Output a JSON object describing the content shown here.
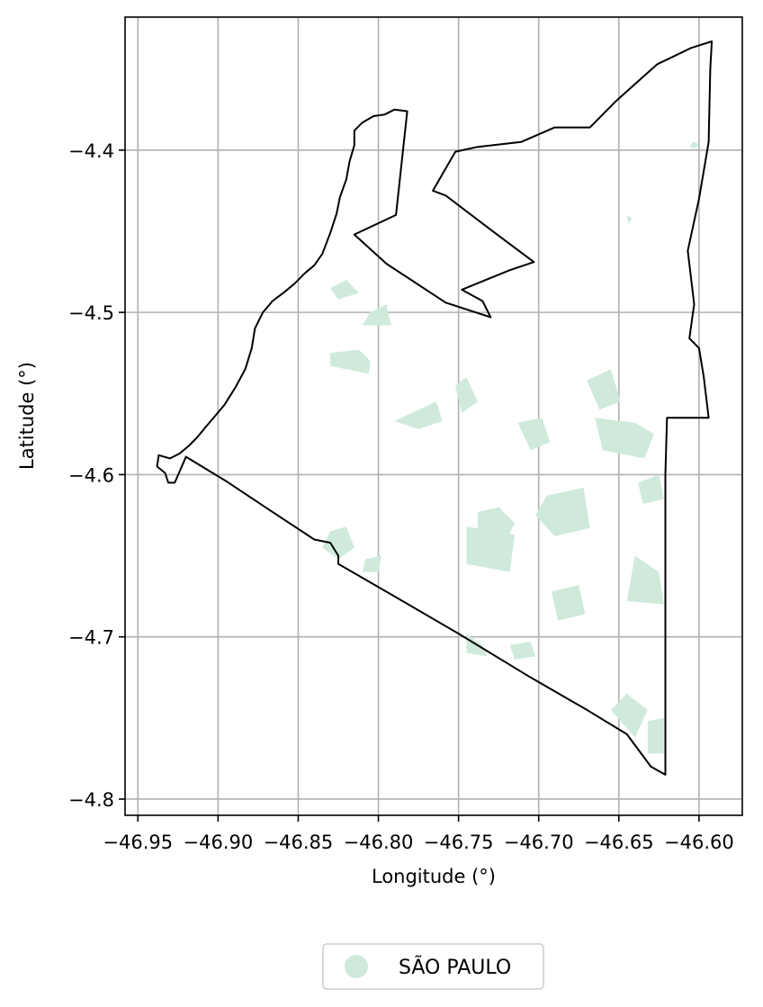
{
  "chart_data": {
    "type": "map",
    "title": "",
    "xlabel": "Longitude (°)",
    "ylabel": "Latitude (°)",
    "xlim": [
      -46.958,
      -46.573
    ],
    "ylim": [
      -4.81,
      -4.318
    ],
    "grid": true,
    "x_ticks": [
      -46.95,
      -46.9,
      -46.85,
      -46.8,
      -46.75,
      -46.7,
      -46.65,
      -46.6
    ],
    "y_ticks": [
      -4.4,
      -4.5,
      -4.6,
      -4.7,
      -4.8
    ],
    "x_tick_labels": [
      "−46.95",
      "−46.90",
      "−46.85",
      "−46.80",
      "−46.75",
      "−46.70",
      "−46.65",
      "−46.60"
    ],
    "y_tick_labels": [
      "−4.4",
      "−4.5",
      "−4.6",
      "−4.7",
      "−4.8"
    ],
    "legend": {
      "position": "bottom-center",
      "entries": [
        {
          "label": "SÃO PAULO",
          "color": "#cfeadb",
          "marker": "circle"
        }
      ]
    },
    "boundary": {
      "color": "#000000",
      "coordinates": [
        [
          -46.782,
          -4.376
        ],
        [
          -46.79,
          -4.375
        ],
        [
          -46.796,
          -4.378
        ],
        [
          -46.803,
          -4.379
        ],
        [
          -46.81,
          -4.383
        ],
        [
          -46.815,
          -4.388
        ],
        [
          -46.815,
          -4.397
        ],
        [
          -46.818,
          -4.407
        ],
        [
          -46.82,
          -4.418
        ],
        [
          -46.824,
          -4.429
        ],
        [
          -46.826,
          -4.439
        ],
        [
          -46.83,
          -4.451
        ],
        [
          -46.835,
          -4.464
        ],
        [
          -46.84,
          -4.471
        ],
        [
          -46.846,
          -4.476
        ],
        [
          -46.852,
          -4.482
        ],
        [
          -46.858,
          -4.487
        ],
        [
          -46.866,
          -4.493
        ],
        [
          -46.872,
          -4.5
        ],
        [
          -46.877,
          -4.51
        ],
        [
          -46.879,
          -4.522
        ],
        [
          -46.883,
          -4.535
        ],
        [
          -46.889,
          -4.546
        ],
        [
          -46.896,
          -4.557
        ],
        [
          -46.902,
          -4.564
        ],
        [
          -46.908,
          -4.571
        ],
        [
          -46.913,
          -4.577
        ],
        [
          -46.918,
          -4.582
        ],
        [
          -46.924,
          -4.587
        ],
        [
          -46.93,
          -4.59
        ],
        [
          -46.937,
          -4.588
        ],
        [
          -46.938,
          -4.595
        ],
        [
          -46.933,
          -4.599
        ],
        [
          -46.931,
          -4.605
        ],
        [
          -46.927,
          -4.605
        ],
        [
          -46.92,
          -4.589
        ],
        [
          -46.895,
          -4.604
        ],
        [
          -46.866,
          -4.623
        ],
        [
          -46.84,
          -4.64
        ],
        [
          -46.83,
          -4.642
        ],
        [
          -46.825,
          -4.65
        ],
        [
          -46.825,
          -4.655
        ],
        [
          -46.79,
          -4.675
        ],
        [
          -46.75,
          -4.698
        ],
        [
          -46.705,
          -4.725
        ],
        [
          -46.67,
          -4.745
        ],
        [
          -46.645,
          -4.76
        ],
        [
          -46.63,
          -4.78
        ],
        [
          -46.621,
          -4.785
        ],
        [
          -46.621,
          -4.745
        ],
        [
          -46.621,
          -4.69
        ],
        [
          -46.621,
          -4.645
        ],
        [
          -46.621,
          -4.6
        ],
        [
          -46.62,
          -4.565
        ],
        [
          -46.594,
          -4.565
        ],
        [
          -46.597,
          -4.54
        ],
        [
          -46.6,
          -4.522
        ],
        [
          -46.606,
          -4.516
        ],
        [
          -46.603,
          -4.495
        ],
        [
          -46.607,
          -4.462
        ],
        [
          -46.6,
          -4.43
        ],
        [
          -46.594,
          -4.395
        ],
        [
          -46.593,
          -4.35
        ],
        [
          -46.592,
          -4.333
        ],
        [
          -46.605,
          -4.337
        ],
        [
          -46.626,
          -4.347
        ],
        [
          -46.643,
          -4.362
        ],
        [
          -46.652,
          -4.37
        ],
        [
          -46.668,
          -4.386
        ],
        [
          -46.69,
          -4.386
        ],
        [
          -46.711,
          -4.395
        ],
        [
          -46.738,
          -4.398
        ],
        [
          -46.752,
          -4.401
        ],
        [
          -46.766,
          -4.425
        ],
        [
          -46.758,
          -4.428
        ],
        [
          -46.726,
          -4.452
        ],
        [
          -46.703,
          -4.469
        ],
        [
          -46.718,
          -4.474
        ],
        [
          -46.748,
          -4.486
        ],
        [
          -46.735,
          -4.493
        ],
        [
          -46.73,
          -4.503
        ],
        [
          -46.758,
          -4.494
        ],
        [
          -46.795,
          -4.47
        ],
        [
          -46.815,
          -4.452
        ],
        [
          -46.789,
          -4.44
        ],
        [
          -46.782,
          -4.376
        ]
      ]
    },
    "urban_areas": {
      "color": "#cfeadb",
      "polygons": [
        [
          [
            -46.83,
            -4.485
          ],
          [
            -46.82,
            -4.48
          ],
          [
            -46.812,
            -4.488
          ],
          [
            -46.825,
            -4.492
          ]
        ],
        [
          [
            -46.805,
            -4.5
          ],
          [
            -46.795,
            -4.495
          ],
          [
            -46.792,
            -4.508
          ],
          [
            -46.81,
            -4.508
          ]
        ],
        [
          [
            -46.83,
            -4.525
          ],
          [
            -46.812,
            -4.523
          ],
          [
            -46.805,
            -4.53
          ],
          [
            -46.806,
            -4.538
          ],
          [
            -46.83,
            -4.533
          ]
        ],
        [
          [
            -46.775,
            -4.56
          ],
          [
            -46.764,
            -4.555
          ],
          [
            -46.76,
            -4.567
          ],
          [
            -46.775,
            -4.572
          ],
          [
            -46.79,
            -4.567
          ]
        ],
        [
          [
            -46.752,
            -4.545
          ],
          [
            -46.745,
            -4.54
          ],
          [
            -46.738,
            -4.555
          ],
          [
            -46.748,
            -4.562
          ]
        ],
        [
          [
            -46.713,
            -4.568
          ],
          [
            -46.698,
            -4.565
          ],
          [
            -46.693,
            -4.58
          ],
          [
            -46.705,
            -4.585
          ]
        ],
        [
          [
            -46.67,
            -4.542
          ],
          [
            -46.655,
            -4.535
          ],
          [
            -46.649,
            -4.555
          ],
          [
            -46.662,
            -4.56
          ]
        ],
        [
          [
            -46.665,
            -4.565
          ],
          [
            -46.64,
            -4.568
          ],
          [
            -46.628,
            -4.575
          ],
          [
            -46.634,
            -4.59
          ],
          [
            -46.66,
            -4.585
          ]
        ],
        [
          [
            -46.638,
            -4.605
          ],
          [
            -46.625,
            -4.6
          ],
          [
            -46.622,
            -4.615
          ],
          [
            -46.635,
            -4.618
          ]
        ],
        [
          [
            -46.738,
            -4.623
          ],
          [
            -46.725,
            -4.62
          ],
          [
            -46.715,
            -4.63
          ],
          [
            -46.72,
            -4.64
          ],
          [
            -46.738,
            -4.636
          ]
        ],
        [
          [
            -46.695,
            -4.613
          ],
          [
            -46.672,
            -4.608
          ],
          [
            -46.668,
            -4.633
          ],
          [
            -46.69,
            -4.638
          ],
          [
            -46.702,
            -4.625
          ]
        ],
        [
          [
            -46.745,
            -4.632
          ],
          [
            -46.715,
            -4.637
          ],
          [
            -46.718,
            -4.66
          ],
          [
            -46.745,
            -4.655
          ]
        ],
        [
          [
            -46.64,
            -4.65
          ],
          [
            -46.625,
            -4.66
          ],
          [
            -46.622,
            -4.68
          ],
          [
            -46.645,
            -4.678
          ]
        ],
        [
          [
            -46.692,
            -4.672
          ],
          [
            -46.675,
            -4.668
          ],
          [
            -46.671,
            -4.686
          ],
          [
            -46.688,
            -4.69
          ]
        ],
        [
          [
            -46.745,
            -4.698
          ],
          [
            -46.735,
            -4.705
          ],
          [
            -46.732,
            -4.712
          ],
          [
            -46.745,
            -4.71
          ]
        ],
        [
          [
            -46.718,
            -4.705
          ],
          [
            -46.705,
            -4.703
          ],
          [
            -46.702,
            -4.712
          ],
          [
            -46.715,
            -4.714
          ]
        ],
        [
          [
            -46.655,
            -4.745
          ],
          [
            -46.645,
            -4.735
          ],
          [
            -46.632,
            -4.745
          ],
          [
            -46.64,
            -4.762
          ]
        ],
        [
          [
            -46.632,
            -4.752
          ],
          [
            -46.622,
            -4.75
          ],
          [
            -46.622,
            -4.772
          ],
          [
            -46.632,
            -4.772
          ]
        ],
        [
          [
            -46.83,
            -4.635
          ],
          [
            -46.82,
            -4.632
          ],
          [
            -46.815,
            -4.645
          ],
          [
            -46.825,
            -4.652
          ],
          [
            -46.835,
            -4.645
          ]
        ],
        [
          [
            -46.808,
            -4.652
          ],
          [
            -46.798,
            -4.65
          ],
          [
            -46.8,
            -4.66
          ],
          [
            -46.81,
            -4.66
          ]
        ],
        [
          [
            -46.604,
            -4.395
          ],
          [
            -46.6,
            -4.396
          ],
          [
            -46.602,
            -4.399
          ],
          [
            -46.606,
            -4.398
          ]
        ],
        [
          [
            -46.645,
            -4.44
          ],
          [
            -46.642,
            -4.442
          ],
          [
            -46.644,
            -4.446
          ]
        ]
      ]
    }
  }
}
